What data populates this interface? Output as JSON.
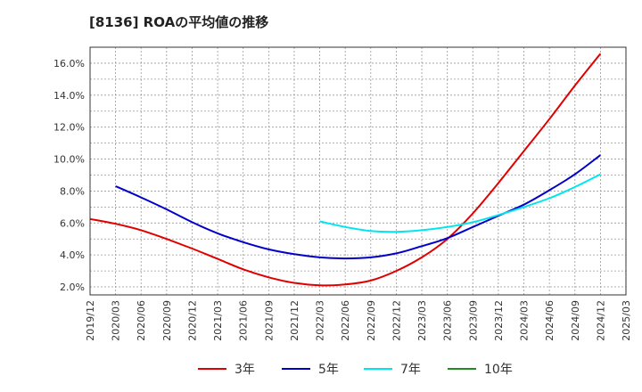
{
  "chart_data": {
    "type": "line",
    "title": "[8136]  ROAの平均値の推移",
    "xlabel": "",
    "ylabel": "",
    "x_ticks": [
      "2019/12",
      "2020/03",
      "2020/06",
      "2020/09",
      "2020/12",
      "2021/03",
      "2021/06",
      "2021/09",
      "2021/12",
      "2022/03",
      "2022/06",
      "2022/09",
      "2022/12",
      "2023/03",
      "2023/06",
      "2023/09",
      "2023/12",
      "2024/03",
      "2024/06",
      "2024/09",
      "2024/12",
      "2025/03"
    ],
    "y_ticks": [
      "2.0%",
      "4.0%",
      "6.0%",
      "8.0%",
      "10.0%",
      "12.0%",
      "14.0%",
      "16.0%"
    ],
    "ylim": [
      1.5,
      17.0
    ],
    "grid": true,
    "legend_position": "bottom",
    "series": [
      {
        "name": "3年",
        "color": "#e00000",
        "points": [
          [
            "2019/12",
            6.25
          ],
          [
            "2020/03",
            5.95
          ],
          [
            "2020/06",
            5.55
          ],
          [
            "2020/09",
            5.0
          ],
          [
            "2020/12",
            4.4
          ],
          [
            "2021/03",
            3.75
          ],
          [
            "2021/06",
            3.1
          ],
          [
            "2021/09",
            2.6
          ],
          [
            "2021/12",
            2.25
          ],
          [
            "2022/03",
            2.1
          ],
          [
            "2022/06",
            2.15
          ],
          [
            "2022/09",
            2.4
          ],
          [
            "2022/12",
            3.0
          ],
          [
            "2023/03",
            3.85
          ],
          [
            "2023/06",
            5.0
          ],
          [
            "2023/09",
            6.6
          ],
          [
            "2023/12",
            8.5
          ],
          [
            "2024/03",
            10.5
          ],
          [
            "2024/06",
            12.5
          ],
          [
            "2024/09",
            14.6
          ],
          [
            "2024/12",
            16.6
          ]
        ]
      },
      {
        "name": "5年",
        "color": "#0000c8",
        "points": [
          [
            "2020/03",
            8.3
          ],
          [
            "2020/06",
            7.6
          ],
          [
            "2020/09",
            6.85
          ],
          [
            "2020/12",
            6.05
          ],
          [
            "2021/03",
            5.35
          ],
          [
            "2021/06",
            4.8
          ],
          [
            "2021/09",
            4.35
          ],
          [
            "2021/12",
            4.05
          ],
          [
            "2022/03",
            3.85
          ],
          [
            "2022/06",
            3.78
          ],
          [
            "2022/09",
            3.85
          ],
          [
            "2022/12",
            4.1
          ],
          [
            "2023/03",
            4.55
          ],
          [
            "2023/06",
            5.05
          ],
          [
            "2023/09",
            5.75
          ],
          [
            "2023/12",
            6.45
          ],
          [
            "2024/03",
            7.15
          ],
          [
            "2024/06",
            8.05
          ],
          [
            "2024/09",
            9.05
          ],
          [
            "2024/12",
            10.25
          ]
        ]
      },
      {
        "name": "7年",
        "color": "#00e5ee",
        "points": [
          [
            "2022/03",
            6.1
          ],
          [
            "2022/06",
            5.75
          ],
          [
            "2022/09",
            5.5
          ],
          [
            "2022/12",
            5.45
          ],
          [
            "2023/03",
            5.55
          ],
          [
            "2023/06",
            5.75
          ],
          [
            "2023/09",
            6.05
          ],
          [
            "2023/12",
            6.5
          ],
          [
            "2024/03",
            7.0
          ],
          [
            "2024/06",
            7.55
          ],
          [
            "2024/09",
            8.25
          ],
          [
            "2024/12",
            9.05
          ]
        ]
      },
      {
        "name": "10年",
        "color": "#228b22",
        "points": []
      }
    ]
  }
}
